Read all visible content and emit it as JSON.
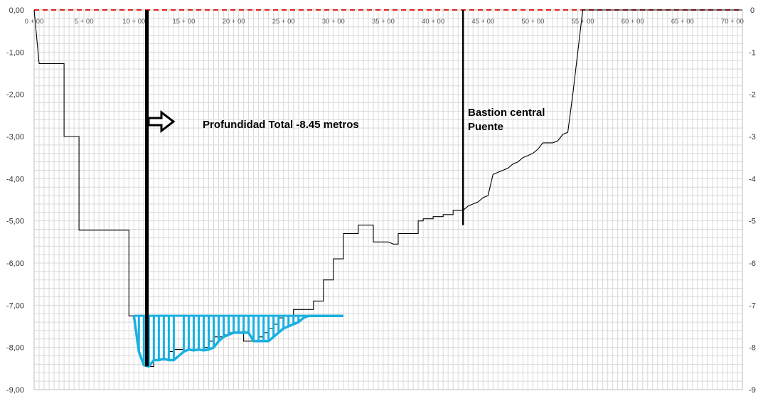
{
  "chart_data": {
    "type": "line",
    "x_unit": "station (m)",
    "xlim": [
      0,
      7100
    ],
    "ylim": [
      -9,
      0
    ],
    "grid": true,
    "x_tick_labels": [
      {
        "x": 0,
        "label": "0 + 00"
      },
      {
        "x": 500,
        "label": "5 + 00"
      },
      {
        "x": 1000,
        "label": "10 + 00"
      },
      {
        "x": 1500,
        "label": "15 + 00"
      },
      {
        "x": 2000,
        "label": "20 + 00"
      },
      {
        "x": 2500,
        "label": "25 + 00"
      },
      {
        "x": 3000,
        "label": "30 + 00"
      },
      {
        "x": 3500,
        "label": "35 + 00"
      },
      {
        "x": 4000,
        "label": "40 + 00"
      },
      {
        "x": 4500,
        "label": "45 + 00"
      },
      {
        "x": 5000,
        "label": "50 + 00"
      },
      {
        "x": 5500,
        "label": "55 + 00"
      },
      {
        "x": 6000,
        "label": "60 + 00"
      },
      {
        "x": 6500,
        "label": "65 + 00"
      },
      {
        "x": 7000,
        "label": "70 + 00"
      }
    ],
    "y_left_tick_labels": [
      {
        "y": 0,
        "label": "0,00"
      },
      {
        "y": -1,
        "label": "-1,00"
      },
      {
        "y": -2,
        "label": "-2,00"
      },
      {
        "y": -3,
        "label": "-3,00"
      },
      {
        "y": -4,
        "label": "-4,00"
      },
      {
        "y": -5,
        "label": "-5,00"
      },
      {
        "y": -6,
        "label": "-6,00"
      },
      {
        "y": -7,
        "label": "-7,00"
      },
      {
        "y": -8,
        "label": "-8,00"
      },
      {
        "y": -9,
        "label": "-9,00"
      }
    ],
    "y_right_tick_labels": [
      {
        "y": 0,
        "label": "0"
      },
      {
        "y": -1,
        "label": "-1"
      },
      {
        "y": -2,
        "label": "-2"
      },
      {
        "y": -3,
        "label": "-3"
      },
      {
        "y": -4,
        "label": "-4"
      },
      {
        "y": -5,
        "label": "-5"
      },
      {
        "y": -6,
        "label": "-6"
      },
      {
        "y": -7,
        "label": "-7"
      },
      {
        "y": -8,
        "label": "-8"
      },
      {
        "y": -9,
        "label": "-9"
      }
    ],
    "reference_line": {
      "y": 0,
      "color": "#e02020",
      "style": "dashed"
    },
    "series": [
      {
        "color": "#000000",
        "x": [
          0,
          50,
          50,
          300,
          300,
          450,
          450,
          500,
          500,
          950,
          950,
          1100,
          1100,
          1150,
          1150,
          1200,
          1200,
          1250,
          1250,
          1300,
          1300,
          1350,
          1350,
          1400,
          1400,
          1500,
          1500,
          1550,
          1550,
          1600,
          1600,
          1650,
          1650,
          1700,
          1700,
          1750,
          1750,
          1800,
          1800,
          1900,
          1900,
          1950,
          1950,
          2000,
          2000,
          2050,
          2050,
          2100,
          2100,
          2150,
          2150,
          2200,
          2200,
          2250,
          2250,
          2300,
          2300,
          2350,
          2350,
          2400,
          2400,
          2450,
          2450,
          2500,
          2500,
          2600,
          2600,
          2800,
          2800,
          2850,
          2850,
          2900,
          2900,
          3000,
          3000,
          3050,
          3050,
          3100,
          3100,
          3150,
          3150,
          3250,
          3250,
          3300,
          3300,
          3400,
          3400,
          3450,
          3450,
          3550,
          3550,
          3600,
          3600,
          3650,
          3650,
          3750,
          3750,
          3800,
          3800,
          3850,
          3850,
          3900,
          3900,
          3950,
          3950,
          4000,
          4000,
          4100,
          4100,
          4150,
          4150,
          4200,
          4200,
          4250,
          4250,
          4300,
          4350,
          4400,
          4450,
          4500,
          4550,
          4600,
          4650,
          4700,
          4750,
          4800,
          4850,
          4900,
          4950,
          5000,
          5050,
          5100,
          5150,
          5200,
          5250,
          5300,
          5350,
          5400,
          5450,
          5500,
          5550,
          5600,
          5650,
          5700,
          5750,
          5800,
          5850,
          5900,
          5950,
          6000,
          6050,
          6100,
          6150,
          6200,
          6250,
          6300,
          6350,
          6400,
          6450,
          6500,
          6550,
          6600,
          6650,
          6700,
          6750,
          6800,
          6850,
          6900,
          6950,
          7000,
          7050,
          7100
        ],
        "y": [
          0,
          -1.27,
          -1.27,
          -1.27,
          -3.0,
          -3.0,
          -5.22,
          -5.22,
          -5.22,
          -5.22,
          -7.25,
          -7.25,
          -8.42,
          -8.42,
          -8.45,
          -8.45,
          -8.3,
          -8.3,
          -8.27,
          -8.27,
          -8.3,
          -8.3,
          -8.1,
          -8.1,
          -8.05,
          -8.05,
          -8.07,
          -8.07,
          -8.05,
          -8.05,
          -8.07,
          -8.07,
          -8.05,
          -8.05,
          -8.0,
          -8.0,
          -7.85,
          -7.85,
          -7.75,
          -7.75,
          -7.7,
          -7.7,
          -7.65,
          -7.65,
          -7.65,
          -7.65,
          -7.65,
          -7.65,
          -7.85,
          -7.85,
          -7.85,
          -7.85,
          -7.85,
          -7.85,
          -7.75,
          -7.75,
          -7.65,
          -7.65,
          -7.55,
          -7.55,
          -7.45,
          -7.45,
          -7.3,
          -7.3,
          -7.25,
          -7.25,
          -7.1,
          -7.1,
          -6.9,
          -6.9,
          -6.9,
          -6.9,
          -6.4,
          -6.4,
          -5.9,
          -5.9,
          -5.9,
          -5.9,
          -5.3,
          -5.3,
          -5.3,
          -5.3,
          -5.1,
          -5.1,
          -5.1,
          -5.1,
          -5.5,
          -5.5,
          -5.5,
          -5.5,
          -5.5,
          -5.55,
          -5.55,
          -5.55,
          -5.3,
          -5.3,
          -5.3,
          -5.3,
          -5.3,
          -5.3,
          -5.0,
          -5.0,
          -4.95,
          -4.95,
          -4.95,
          -4.95,
          -4.9,
          -4.9,
          -4.85,
          -4.85,
          -4.85,
          -4.85,
          -4.75,
          -4.75,
          -4.75,
          -4.75,
          -4.65,
          -4.6,
          -4.55,
          -4.45,
          -4.4,
          -3.9,
          -3.85,
          -3.8,
          -3.75,
          -3.65,
          -3.6,
          -3.5,
          -3.45,
          -3.4,
          -3.3,
          -3.15,
          -3.15,
          -3.15,
          -3.1,
          -2.95,
          -2.9,
          -2.0,
          -1.0,
          0,
          0,
          0,
          0,
          0,
          0,
          0,
          0,
          0,
          0,
          0,
          0,
          0,
          0,
          0,
          0,
          0,
          0,
          0,
          0,
          0,
          0,
          0,
          0,
          0,
          0,
          0,
          0,
          0,
          0,
          0,
          0,
          0
        ]
      },
      {
        "color": "#1ab0e0",
        "fill": "hatched",
        "top_level": -7.25,
        "x": [
          1000,
          1050,
          1100,
          1150,
          1200,
          1250,
          1300,
          1350,
          1400,
          1500,
          1550,
          1600,
          1650,
          1700,
          1750,
          1800,
          1850,
          1900,
          1950,
          2000,
          2050,
          2100,
          2150,
          2200,
          2250,
          2300,
          2350,
          2400,
          2450,
          2500,
          2550,
          2600,
          2650,
          2700,
          2750,
          2800,
          2850,
          2900,
          2950,
          3000,
          3050,
          3100
        ],
        "y": [
          -7.25,
          -8.1,
          -8.42,
          -8.45,
          -8.3,
          -8.3,
          -8.27,
          -8.3,
          -8.3,
          -8.1,
          -8.05,
          -8.07,
          -8.05,
          -8.07,
          -8.05,
          -8.0,
          -7.85,
          -7.75,
          -7.7,
          -7.65,
          -7.65,
          -7.65,
          -7.65,
          -7.85,
          -7.85,
          -7.85,
          -7.85,
          -7.75,
          -7.65,
          -7.55,
          -7.5,
          -7.45,
          -7.4,
          -7.3,
          -7.25,
          -7.25,
          -7.25,
          -7.25,
          -7.25,
          -7.25,
          -7.25,
          -7.25
        ]
      }
    ],
    "markers": [
      {
        "x": 1130,
        "y_top": 0,
        "y_bottom": -8.45,
        "width": "thick"
      },
      {
        "x": 4300,
        "y_top": 0,
        "y_bottom": -5.1,
        "width": "thin"
      }
    ],
    "annotations": [
      {
        "text": "Profundidad Total -8.45 metros",
        "arrow": true
      },
      {
        "text_lines": [
          "Bastion central",
          "Puente"
        ]
      }
    ]
  }
}
